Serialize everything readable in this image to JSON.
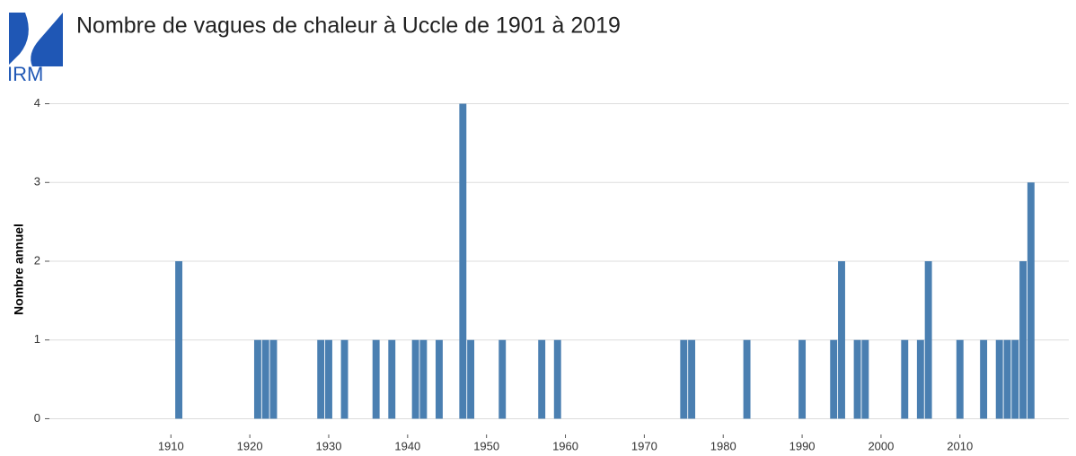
{
  "logo": "IRM",
  "chart_data": {
    "type": "bar",
    "title": "Nombre de vagues de chaleur à Uccle de 1901 à 2019",
    "y_label": "Nombre annuel",
    "x": [
      1911,
      1921,
      1922,
      1923,
      1929,
      1930,
      1932,
      1936,
      1938,
      1941,
      1942,
      1944,
      1947,
      1948,
      1952,
      1957,
      1959,
      1975,
      1976,
      1983,
      1990,
      1994,
      1995,
      1997,
      1998,
      2003,
      2005,
      2006,
      2010,
      2013,
      2015,
      2016,
      2017,
      2018,
      2019
    ],
    "values": [
      2,
      1,
      1,
      1,
      1,
      1,
      1,
      1,
      1,
      1,
      1,
      1,
      4,
      1,
      1,
      1,
      1,
      1,
      1,
      1,
      1,
      1,
      2,
      1,
      1,
      1,
      1,
      2,
      1,
      1,
      1,
      1,
      1,
      2,
      3
    ],
    "color": "#4a7fb1",
    "xlim": [
      1894.6,
      2023.8
    ],
    "xticks": [
      1910,
      1920,
      1930,
      1940,
      1950,
      1960,
      1970,
      1980,
      1990,
      2000,
      2010
    ],
    "ylim": [
      -0.2,
      4.2
    ],
    "yticks": [
      0,
      1,
      2,
      3,
      4
    ],
    "grid": true
  }
}
